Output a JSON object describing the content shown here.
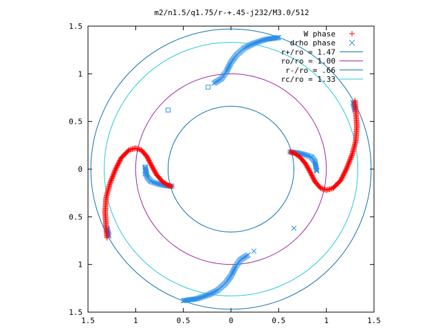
{
  "chart_data": {
    "type": "scatter",
    "title": "m2/n1.5/q1.75/r-+.45-j232/M3.0/512",
    "xlabel": "",
    "ylabel": "",
    "xlim": [
      -1.5,
      1.5
    ],
    "ylim": [
      -1.5,
      1.5
    ],
    "x_ticks": [
      -1.5,
      -1,
      -0.5,
      0,
      0.5,
      1,
      1.5
    ],
    "y_ticks": [
      -1.5,
      -1,
      -0.5,
      0,
      0.5,
      1,
      1.5
    ],
    "x_tick_labels": [
      "1.5",
      "1",
      "0.5",
      "0",
      "0.5",
      "1",
      "1.5"
    ],
    "y_tick_labels": [
      "1.5",
      "1",
      "0.5",
      "0",
      "0.5",
      "1",
      "1.5"
    ],
    "grid": false,
    "legend_position": "top-right",
    "circles": [
      {
        "name": "r+/ro = 1.47",
        "radius": 1.47,
        "color": "#0b6fae"
      },
      {
        "name": "ro/ro = 1.00",
        "radius": 1.0,
        "color": "#a020a0"
      },
      {
        "name": "r-/ro = .66",
        "radius": 0.66,
        "color": "#0b6fae"
      },
      {
        "name": "rc/ro = 1.33",
        "radius": 1.33,
        "color": "#22c8d8"
      }
    ],
    "series": [
      {
        "name": "W phase",
        "marker": "+",
        "color": "#ff0000",
        "arms": [
          [
            [
              -1.3,
              -0.72
            ],
            [
              -1.31,
              -0.6
            ],
            [
              -1.32,
              -0.45
            ],
            [
              -1.31,
              -0.3
            ],
            [
              -1.27,
              -0.15
            ],
            [
              -1.21,
              0.0
            ],
            [
              -1.15,
              0.12
            ],
            [
              -1.07,
              0.2
            ],
            [
              -1.0,
              0.22
            ],
            [
              -0.94,
              0.2
            ],
            [
              -0.88,
              0.13
            ],
            [
              -0.83,
              0.03
            ],
            [
              -0.78,
              -0.06
            ],
            [
              -0.72,
              -0.13
            ],
            [
              -0.66,
              -0.17
            ],
            [
              -0.62,
              -0.18
            ]
          ],
          [
            [
              1.3,
              0.72
            ],
            [
              1.31,
              0.6
            ],
            [
              1.32,
              0.45
            ],
            [
              1.31,
              0.3
            ],
            [
              1.27,
              0.15
            ],
            [
              1.21,
              0.0
            ],
            [
              1.15,
              -0.12
            ],
            [
              1.07,
              -0.2
            ],
            [
              1.0,
              -0.22
            ],
            [
              0.94,
              -0.2
            ],
            [
              0.88,
              -0.13
            ],
            [
              0.83,
              -0.03
            ],
            [
              0.78,
              0.06
            ],
            [
              0.72,
              0.13
            ],
            [
              0.66,
              0.17
            ],
            [
              0.62,
              0.18
            ]
          ]
        ]
      },
      {
        "name": "drho phase",
        "marker": "x",
        "color": "#2b8ee8",
        "arms": [
          [
            [
              -0.18,
              0.9
            ],
            [
              -0.1,
              0.95
            ],
            [
              -0.05,
              1.02
            ],
            [
              0.0,
              1.12
            ],
            [
              0.06,
              1.2
            ],
            [
              0.14,
              1.27
            ],
            [
              0.24,
              1.32
            ],
            [
              0.36,
              1.36
            ],
            [
              0.5,
              1.38
            ]
          ],
          [
            [
              0.18,
              -0.9
            ],
            [
              0.1,
              -0.95
            ],
            [
              0.05,
              -1.02
            ],
            [
              0.0,
              -1.12
            ],
            [
              -0.06,
              -1.2
            ],
            [
              -0.14,
              -1.27
            ],
            [
              -0.24,
              -1.32
            ],
            [
              -0.36,
              -1.36
            ],
            [
              -0.5,
              -1.38
            ]
          ],
          [
            [
              -0.9,
              0.02
            ],
            [
              -0.88,
              -0.08
            ],
            [
              -0.84,
              -0.13
            ],
            [
              -0.78,
              -0.15
            ],
            [
              -0.7,
              -0.17
            ],
            [
              -0.62,
              -0.18
            ]
          ],
          [
            [
              0.9,
              -0.02
            ],
            [
              0.88,
              0.08
            ],
            [
              0.84,
              0.13
            ],
            [
              0.78,
              0.15
            ],
            [
              0.7,
              0.17
            ],
            [
              0.62,
              0.18
            ]
          ],
          [
            [
              1.28,
              0.7
            ],
            [
              1.3,
              0.62
            ]
          ],
          [
            [
              -1.28,
              -0.7
            ],
            [
              -1.3,
              -0.62
            ]
          ]
        ],
        "outliers": [
          [
            -0.24,
            0.86
          ],
          [
            -0.66,
            0.62
          ],
          [
            -0.9,
            0.02
          ],
          [
            -0.9,
            -0.05
          ],
          [
            0.66,
            -0.62
          ],
          [
            0.24,
            -0.86
          ],
          [
            0.9,
            -0.02
          ]
        ]
      }
    ]
  }
}
